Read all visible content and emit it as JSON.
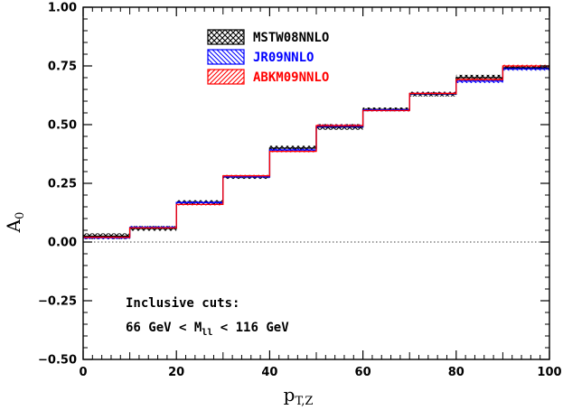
{
  "chart_data": {
    "type": "line",
    "step": true,
    "title": "",
    "xlabel_main": "p",
    "xlabel_sub": "T,Z",
    "ylabel_main": "A",
    "ylabel_sub": "0",
    "xlim": [
      0,
      100
    ],
    "ylim": [
      -0.5,
      1.0
    ],
    "xticks": [
      0,
      20,
      40,
      60,
      80,
      100
    ],
    "xtick_labels": [
      "0",
      "20",
      "40",
      "60",
      "80",
      "100"
    ],
    "yticks": [
      -0.5,
      -0.25,
      0.0,
      0.25,
      0.5,
      0.75,
      1.0
    ],
    "ytick_labels": [
      "−0.50",
      "−0.25",
      "0.00",
      "0.25",
      "0.50",
      "0.75",
      "1.00"
    ],
    "bin_edges": [
      0,
      10,
      20,
      30,
      40,
      50,
      60,
      70,
      80,
      90,
      100
    ],
    "series": [
      {
        "name": "MSTW08NNLO",
        "color": "#000000",
        "pattern": "crosshatch",
        "values": [
          0.025,
          0.058,
          0.168,
          0.277,
          0.4,
          0.49,
          0.565,
          0.63,
          0.7,
          0.742
        ],
        "band": [
          0.012,
          0.01,
          0.01,
          0.008,
          0.01,
          0.012,
          0.008,
          0.01,
          0.012,
          0.008
        ]
      },
      {
        "name": "JR09NNLO",
        "color": "#0000ff",
        "pattern": "hatch-back",
        "values": [
          0.018,
          0.062,
          0.168,
          0.278,
          0.392,
          0.493,
          0.563,
          0.632,
          0.685,
          0.738
        ],
        "band": [
          0.006,
          0.006,
          0.006,
          0.006,
          0.008,
          0.008,
          0.006,
          0.006,
          0.008,
          0.008
        ]
      },
      {
        "name": "ABKM09NNLO",
        "color": "#ff0000",
        "pattern": "hatch-forward",
        "values": [
          0.02,
          0.06,
          0.16,
          0.282,
          0.386,
          0.496,
          0.56,
          0.633,
          0.692,
          0.75
        ],
        "band": [
          0.004,
          0.004,
          0.004,
          0.004,
          0.004,
          0.005,
          0.004,
          0.004,
          0.005,
          0.005
        ]
      }
    ],
    "legend_position": "top-center",
    "annotations": {
      "line1": "Inclusive cuts:",
      "line2_prefix": "66 GeV < M",
      "line2_sub": "ll",
      "line2_suffix": " < 116 GeV"
    }
  }
}
